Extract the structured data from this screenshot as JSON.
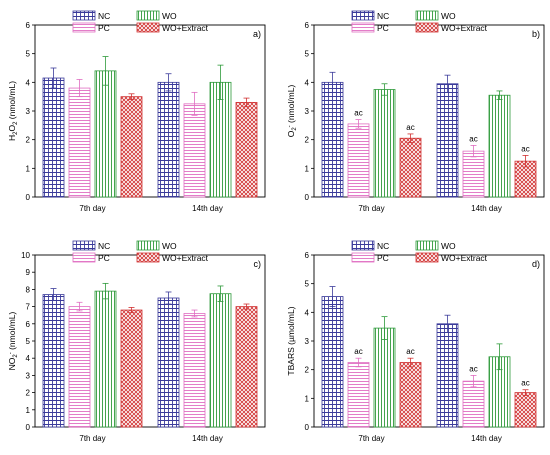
{
  "chart_data": [
    {
      "panel": "a)",
      "type": "bar",
      "ylabel_parts": [
        "H",
        "2",
        "O",
        "2",
        " (nmol/mL)"
      ],
      "ylim": [
        0,
        6
      ],
      "yticks": [
        "0",
        "1",
        "2",
        "3",
        "4",
        "5",
        "6"
      ],
      "categories": [
        "7th day",
        "14th day"
      ],
      "series": [
        {
          "name": "NC",
          "values": [
            4.15,
            4.0
          ],
          "errors": [
            0.35,
            0.3
          ]
        },
        {
          "name": "PC",
          "values": [
            3.8,
            3.25
          ],
          "errors": [
            0.3,
            0.4
          ]
        },
        {
          "name": "WO",
          "values": [
            4.4,
            4.0
          ],
          "errors": [
            0.5,
            0.6
          ]
        },
        {
          "name": "WO+Extract",
          "values": [
            3.5,
            3.3
          ],
          "errors": [
            0.1,
            0.15
          ]
        }
      ],
      "annotations": [
        [
          "",
          "",
          "",
          ""
        ],
        [
          "",
          "",
          "",
          ""
        ]
      ]
    },
    {
      "panel": "b)",
      "type": "bar",
      "ylabel_parts": [
        "O",
        "2",
        "-",
        " (nmol/mL)"
      ],
      "ylim": [
        0,
        6
      ],
      "yticks": [
        "0",
        "1",
        "2",
        "3",
        "4",
        "5",
        "6"
      ],
      "categories": [
        "7th day",
        "14th day"
      ],
      "series": [
        {
          "name": "NC",
          "values": [
            4.0,
            3.95
          ],
          "errors": [
            0.35,
            0.3
          ]
        },
        {
          "name": "PC",
          "values": [
            2.55,
            1.6
          ],
          "errors": [
            0.15,
            0.2
          ]
        },
        {
          "name": "WO",
          "values": [
            3.75,
            3.55
          ],
          "errors": [
            0.2,
            0.15
          ]
        },
        {
          "name": "WO+Extract",
          "values": [
            2.05,
            1.25
          ],
          "errors": [
            0.15,
            0.2
          ]
        }
      ],
      "annotations": [
        [
          "",
          "ac",
          "",
          "ac"
        ],
        [
          "",
          "ac",
          "",
          "ac"
        ]
      ]
    },
    {
      "panel": "c)",
      "type": "bar",
      "ylabel_parts": [
        "NO",
        "2",
        "-",
        " (nmol/mL)"
      ],
      "ylim": [
        0,
        10
      ],
      "yticks": [
        "0",
        "1",
        "2",
        "3",
        "4",
        "5",
        "6",
        "7",
        "8",
        "9",
        "10"
      ],
      "categories": [
        "7th day",
        "14th day"
      ],
      "series": [
        {
          "name": "NC",
          "values": [
            7.7,
            7.5
          ],
          "errors": [
            0.35,
            0.35
          ]
        },
        {
          "name": "PC",
          "values": [
            7.0,
            6.6
          ],
          "errors": [
            0.25,
            0.2
          ]
        },
        {
          "name": "WO",
          "values": [
            7.9,
            7.75
          ],
          "errors": [
            0.45,
            0.45
          ]
        },
        {
          "name": "WO+Extract",
          "values": [
            6.8,
            7.0
          ],
          "errors": [
            0.15,
            0.15
          ]
        }
      ],
      "annotations": [
        [
          "",
          "",
          "",
          ""
        ],
        [
          "",
          "",
          "",
          ""
        ]
      ]
    },
    {
      "panel": "d)",
      "type": "bar",
      "ylabel_parts": [
        "TBARS (",
        "",
        "µmol/mL)"
      ],
      "ylim": [
        0,
        6
      ],
      "yticks": [
        "0",
        "1",
        "2",
        "3",
        "4",
        "5",
        "6"
      ],
      "categories": [
        "7th day",
        "14th day"
      ],
      "series": [
        {
          "name": "NC",
          "values": [
            4.55,
            3.6
          ],
          "errors": [
            0.35,
            0.3
          ]
        },
        {
          "name": "PC",
          "values": [
            2.25,
            1.6
          ],
          "errors": [
            0.15,
            0.2
          ]
        },
        {
          "name": "WO",
          "values": [
            3.45,
            2.45
          ],
          "errors": [
            0.4,
            0.45
          ]
        },
        {
          "name": "WO+Extract",
          "values": [
            2.25,
            1.2
          ],
          "errors": [
            0.15,
            0.1
          ]
        }
      ],
      "annotations": [
        [
          "",
          "ac",
          "",
          "ac"
        ],
        [
          "",
          "ac",
          "",
          "ac"
        ]
      ]
    }
  ],
  "legend": [
    "NC",
    "WO",
    "PC",
    "WO+Extract"
  ],
  "colors": {
    "NC": "#3a3a9a",
    "PC": "#e06ec2",
    "WO": "#2e9a3a",
    "WO+Extract": "#d03030"
  }
}
